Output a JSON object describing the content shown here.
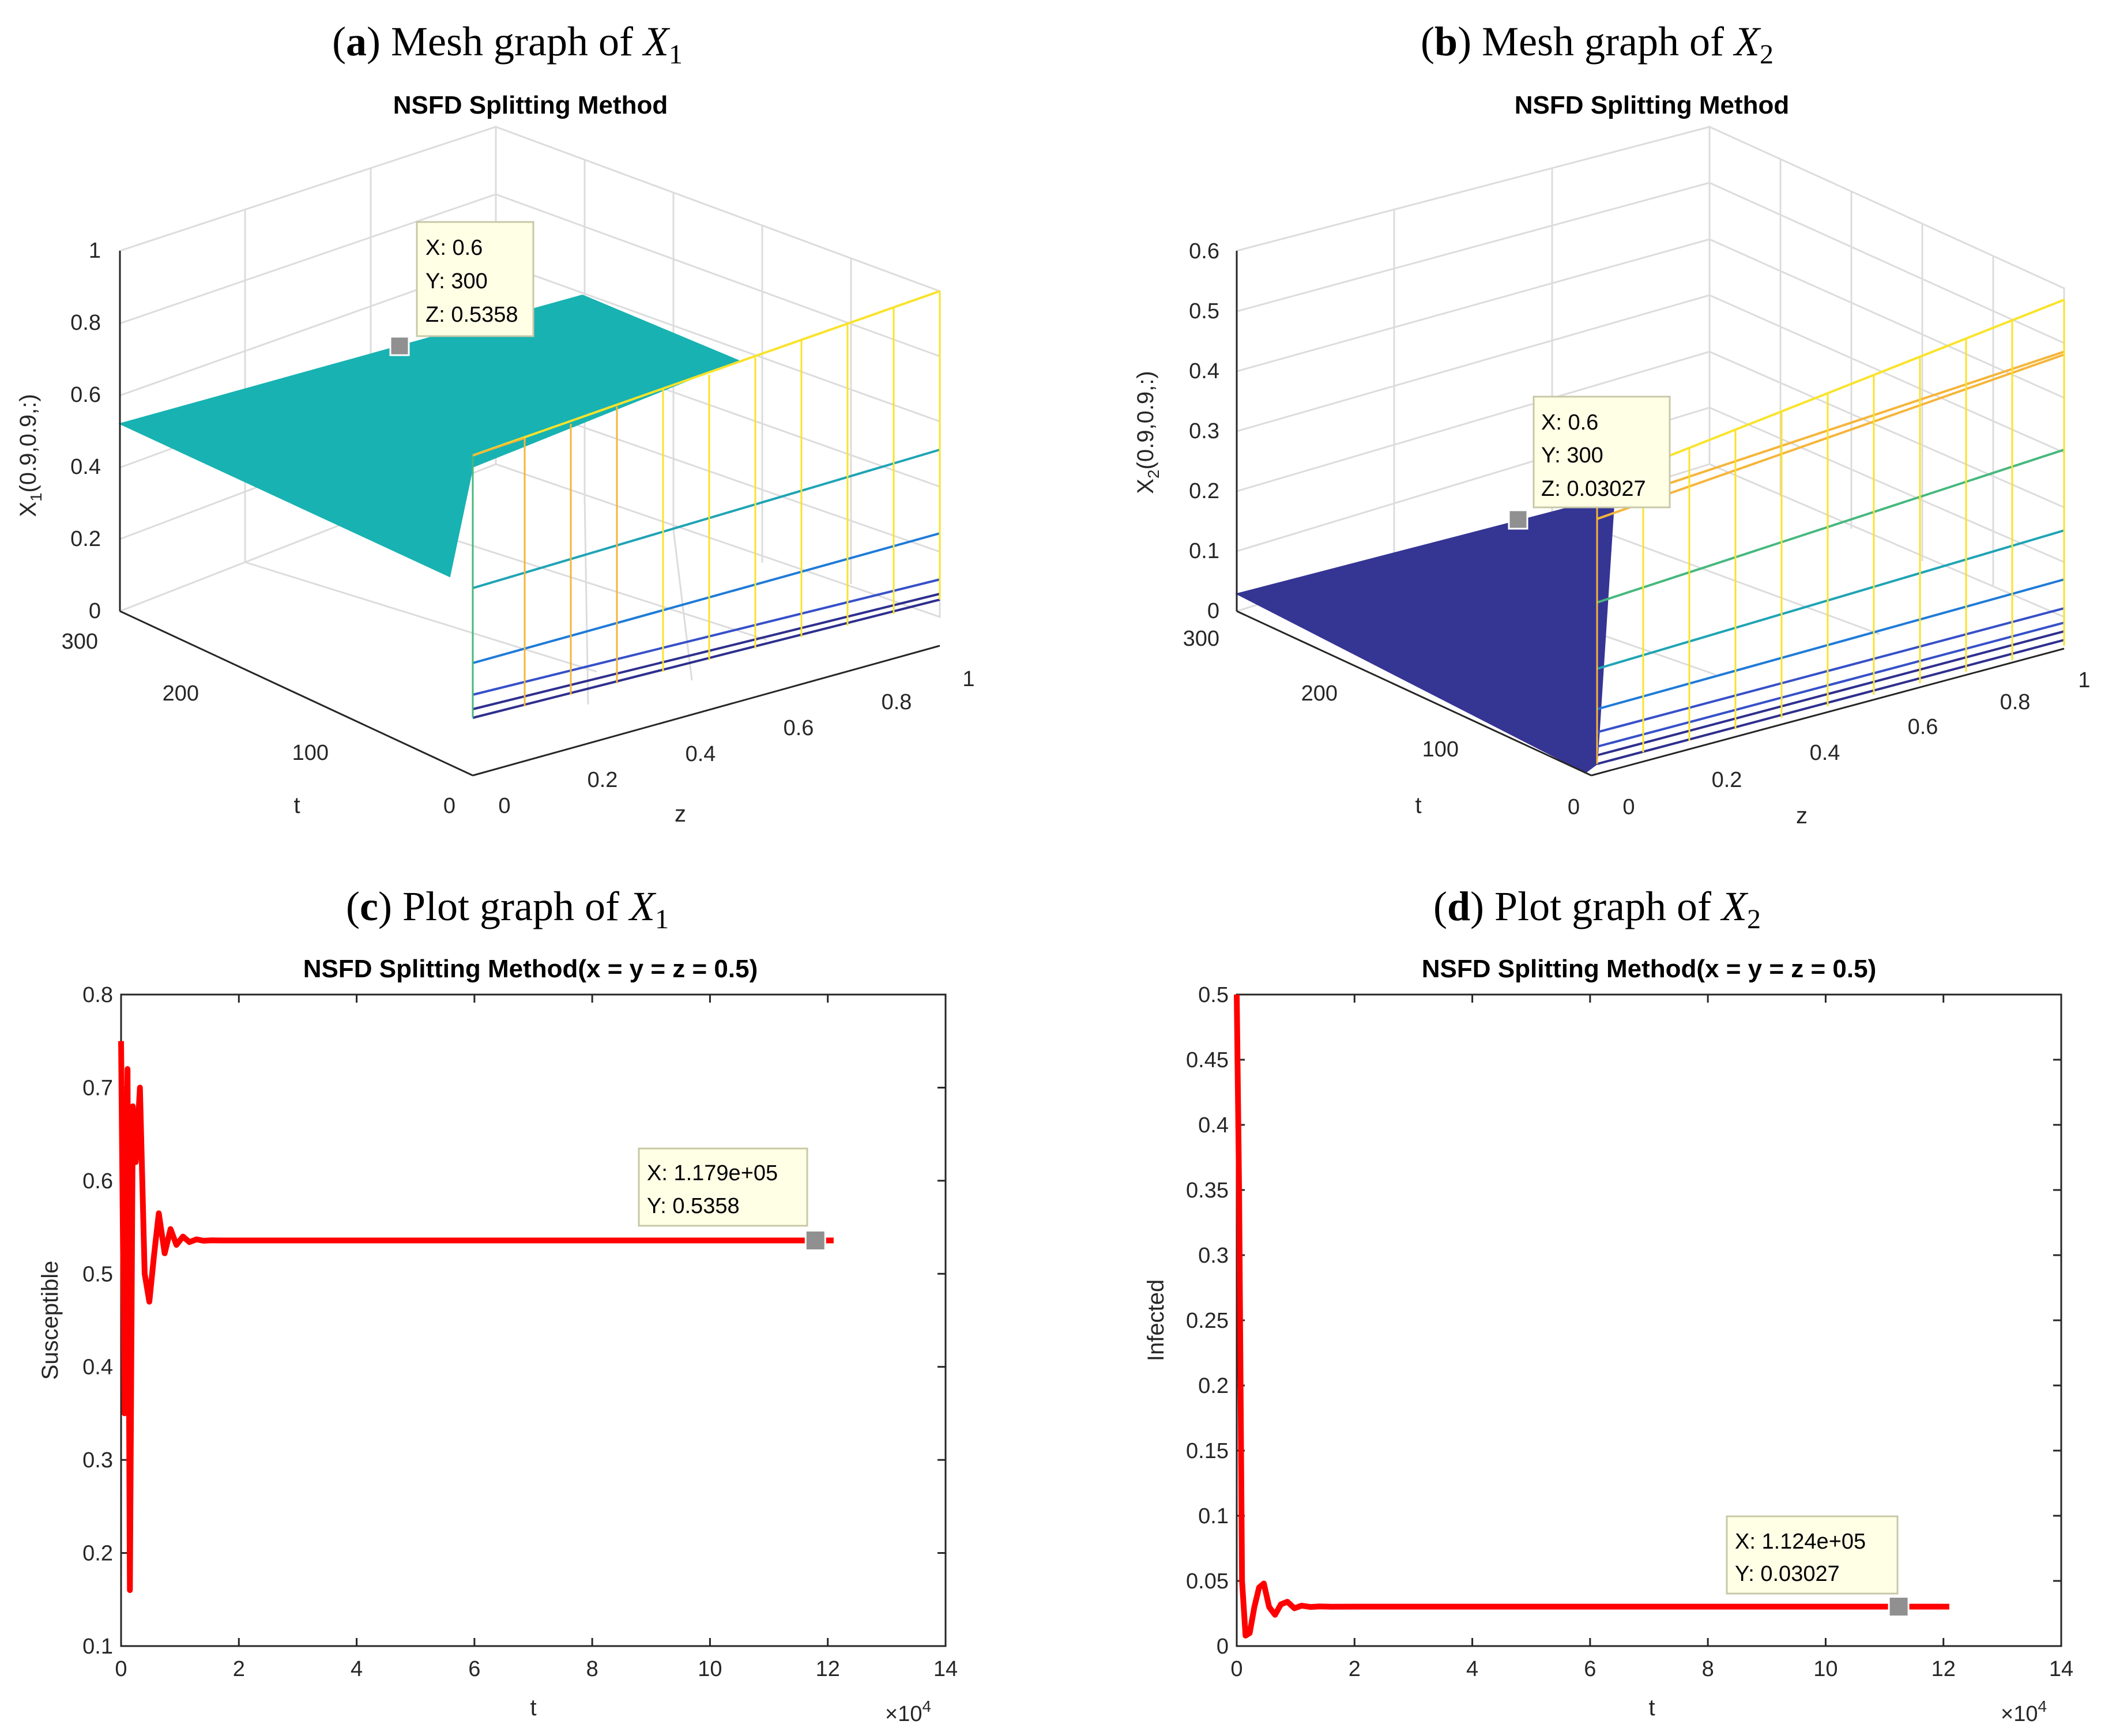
{
  "captions": {
    "a": {
      "letter": "a",
      "text": "Mesh graph of ",
      "var": "X",
      "sub": "1"
    },
    "b": {
      "letter": "b",
      "text": "Mesh graph of ",
      "var": "X",
      "sub": "2"
    },
    "c": {
      "letter": "c",
      "text": "Plot graph of ",
      "var": "X",
      "sub": "1"
    },
    "d": {
      "letter": "d",
      "text": "Plot graph of ",
      "var": "X",
      "sub": "2"
    }
  },
  "colors": {
    "line": "#ff0000",
    "teal_surface": "#18b2b2",
    "navy_surface": "#353594",
    "yellow": "#f9e32a",
    "orange": "#f5b53a",
    "green": "#47b87e",
    "teal": "#1fa4b5",
    "blue": "#1f7bd8",
    "indigo": "#3650c9",
    "navy": "#2e2f8e",
    "tip_bg": "#ffffe6",
    "marker": "#909090"
  },
  "chart_data": [
    {
      "id": "a",
      "type": "mesh3d",
      "title": "NSFD Splitting Method",
      "zlabel": "X",
      "zlabel_sub": "1",
      "zlabel_suffix": "(0.9,0.9,:)",
      "xlabel": "z",
      "ylabel": "t",
      "x_ticks": [
        "0",
        "0.2",
        "0.4",
        "0.6",
        "0.8",
        "1"
      ],
      "y_ticks": [
        "0",
        "100",
        "200",
        "300"
      ],
      "z_ticks": [
        "0",
        "0.2",
        "0.4",
        "0.6",
        "0.8",
        "1"
      ],
      "xlim": [
        0,
        1
      ],
      "ylim": [
        0,
        300
      ],
      "zlim": [
        0,
        1
      ],
      "steady_value": 0.5358,
      "datatip": {
        "x_label": "X: 0.6",
        "y_label": "Y: 300",
        "z_label": "Z: 0.5358",
        "x": 0.6,
        "y": 300,
        "z": 0.5358
      }
    },
    {
      "id": "b",
      "type": "mesh3d",
      "title": "NSFD Splitting Method",
      "zlabel": "X",
      "zlabel_sub": "2",
      "zlabel_suffix": "(0.9,0.9,:)",
      "xlabel": "z",
      "ylabel": "t",
      "x_ticks": [
        "0",
        "0.2",
        "0.4",
        "0.6",
        "0.8",
        "1"
      ],
      "y_ticks": [
        "0",
        "100",
        "200",
        "300"
      ],
      "z_ticks": [
        "0",
        "0.1",
        "0.2",
        "0.3",
        "0.4",
        "0.5",
        "0.6"
      ],
      "xlim": [
        0,
        1
      ],
      "ylim": [
        0,
        300
      ],
      "zlim": [
        0,
        0.6
      ],
      "steady_value": 0.03027,
      "datatip": {
        "x_label": "X: 0.6",
        "y_label": "Y: 300",
        "z_label": "Z: 0.03027",
        "x": 0.6,
        "y": 300,
        "z": 0.03027
      }
    },
    {
      "id": "c",
      "type": "line",
      "title": "NSFD Splitting Method(x = y = z = 0.5)",
      "xlabel": "t",
      "ylabel": "Susceptible",
      "x_multiplier": "×10",
      "x_multiplier_exp": "4",
      "x_ticks": [
        "0",
        "2",
        "4",
        "6",
        "8",
        "10",
        "12",
        "14"
      ],
      "y_ticks": [
        "0.1",
        "0.2",
        "0.3",
        "0.4",
        "0.5",
        "0.6",
        "0.7",
        "0.8"
      ],
      "xlim": [
        0,
        140000
      ],
      "ylim": [
        0.1,
        0.8
      ],
      "series": [
        {
          "name": "Susceptible",
          "x": [
            0,
            600,
            1100,
            1500,
            2000,
            2500,
            3200,
            4000,
            4800,
            5600,
            6400,
            7400,
            8400,
            9400,
            10500,
            11600,
            12800,
            14000,
            15400,
            17000,
            20000,
            30000,
            60000,
            90000,
            121000
          ],
          "values": [
            0.75,
            0.35,
            0.72,
            0.16,
            0.68,
            0.62,
            0.7,
            0.5,
            0.47,
            0.52,
            0.565,
            0.522,
            0.548,
            0.531,
            0.54,
            0.534,
            0.537,
            0.5355,
            0.536,
            0.5358,
            0.5358,
            0.5358,
            0.5358,
            0.5358,
            0.5358
          ]
        }
      ],
      "datatip": {
        "x_label": "X: 1.179e+05",
        "y_label": "Y: 0.5358",
        "x": 117900,
        "y": 0.5358
      }
    },
    {
      "id": "d",
      "type": "line",
      "title": "NSFD Splitting Method(x = y = z = 0.5)",
      "xlabel": "t",
      "ylabel": "Infected",
      "x_multiplier": "×10",
      "x_multiplier_exp": "4",
      "x_ticks": [
        "0",
        "2",
        "4",
        "6",
        "8",
        "10",
        "12",
        "14"
      ],
      "y_ticks": [
        "0",
        "0.05",
        "0.1",
        "0.15",
        "0.2",
        "0.25",
        "0.3",
        "0.35",
        "0.4",
        "0.45",
        "0.5"
      ],
      "xlim": [
        0,
        140000
      ],
      "ylim": [
        0,
        0.5
      ],
      "series": [
        {
          "name": "Infected",
          "x": [
            0,
            400,
            900,
            1500,
            2200,
            3000,
            3800,
            4600,
            5500,
            6500,
            7500,
            8600,
            9800,
            11000,
            12500,
            14000,
            16000,
            20000,
            40000,
            80000,
            121000
          ],
          "values": [
            0.5,
            0.35,
            0.05,
            0.008,
            0.01,
            0.03,
            0.045,
            0.048,
            0.03,
            0.024,
            0.032,
            0.034,
            0.029,
            0.031,
            0.03,
            0.0304,
            0.0302,
            0.03027,
            0.03027,
            0.03027,
            0.03027
          ]
        }
      ],
      "datatip": {
        "x_label": "X: 1.124e+05",
        "y_label": "Y: 0.03027",
        "x": 112400,
        "y": 0.03027
      }
    }
  ]
}
